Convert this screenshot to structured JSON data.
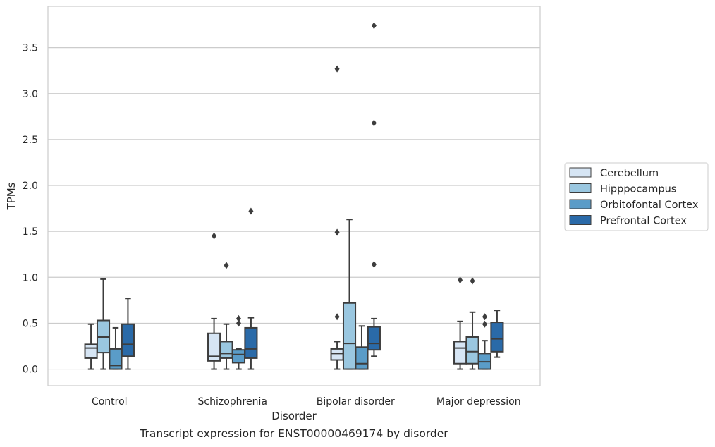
{
  "chart_data": {
    "type": "box",
    "xlabel": "Disorder",
    "ylabel": "TPMs",
    "caption": "Transcript expression for ENST00000469174 by disorder",
    "ylim": [
      -0.18,
      3.95
    ],
    "yticks": [
      0.0,
      0.5,
      1.0,
      1.5,
      2.0,
      2.5,
      3.0,
      3.5
    ],
    "ytick_labels": [
      "0.0",
      "0.5",
      "1.0",
      "1.5",
      "2.0",
      "2.5",
      "3.0",
      "3.5"
    ],
    "grid": "horizontal",
    "legend_position": "right",
    "categories": [
      "Control",
      "Schizophrenia",
      "Bipolar disorder",
      "Major depression"
    ],
    "series": [
      {
        "name": "Cerebellum",
        "color": "#d6e5f4",
        "boxes": [
          {
            "whislo": 0.0,
            "q1": 0.12,
            "med": 0.23,
            "q3": 0.27,
            "whishi": 0.49,
            "fliers": []
          },
          {
            "whislo": 0.0,
            "q1": 0.09,
            "med": 0.14,
            "q3": 0.39,
            "whishi": 0.55,
            "fliers": [
              1.45
            ]
          },
          {
            "whislo": 0.0,
            "q1": 0.1,
            "med": 0.17,
            "q3": 0.22,
            "whishi": 0.3,
            "fliers": [
              0.57,
              1.49,
              3.27
            ]
          },
          {
            "whislo": 0.0,
            "q1": 0.06,
            "med": 0.23,
            "q3": 0.3,
            "whishi": 0.52,
            "fliers": [
              0.97
            ]
          }
        ]
      },
      {
        "name": "Hipppocampus",
        "color": "#9ac7e0",
        "boxes": [
          {
            "whislo": 0.0,
            "q1": 0.18,
            "med": 0.35,
            "q3": 0.53,
            "whishi": 0.98,
            "fliers": []
          },
          {
            "whislo": 0.0,
            "q1": 0.12,
            "med": 0.17,
            "q3": 0.3,
            "whishi": 0.49,
            "fliers": [
              1.13
            ]
          },
          {
            "whislo": 0.0,
            "q1": 0.0,
            "med": 0.28,
            "q3": 0.72,
            "whishi": 1.63,
            "fliers": []
          },
          {
            "whislo": 0.0,
            "q1": 0.06,
            "med": 0.19,
            "q3": 0.35,
            "whishi": 0.62,
            "fliers": [
              0.96
            ]
          }
        ]
      },
      {
        "name": "Orbitofontal Cortex",
        "color": "#5a9cc8",
        "boxes": [
          {
            "whislo": 0.0,
            "q1": 0.0,
            "med": 0.04,
            "q3": 0.22,
            "whishi": 0.45,
            "fliers": []
          },
          {
            "whislo": 0.0,
            "q1": 0.07,
            "med": 0.16,
            "q3": 0.21,
            "whishi": 0.22,
            "fliers": [
              0.5,
              0.55
            ]
          },
          {
            "whislo": 0.0,
            "q1": 0.0,
            "med": 0.06,
            "q3": 0.24,
            "whishi": 0.47,
            "fliers": []
          },
          {
            "whislo": 0.0,
            "q1": 0.0,
            "med": 0.08,
            "q3": 0.17,
            "whishi": 0.31,
            "fliers": [
              0.49,
              0.57
            ]
          }
        ]
      },
      {
        "name": "Prefrontal Cortex",
        "color": "#2a6aa8",
        "boxes": [
          {
            "whislo": 0.0,
            "q1": 0.14,
            "med": 0.27,
            "q3": 0.49,
            "whishi": 0.77,
            "fliers": []
          },
          {
            "whislo": 0.0,
            "q1": 0.12,
            "med": 0.22,
            "q3": 0.45,
            "whishi": 0.56,
            "fliers": [
              1.72
            ]
          },
          {
            "whislo": 0.14,
            "q1": 0.21,
            "med": 0.28,
            "q3": 0.46,
            "whishi": 0.55,
            "fliers": [
              1.14,
              2.68,
              3.74
            ]
          },
          {
            "whislo": 0.13,
            "q1": 0.19,
            "med": 0.33,
            "q3": 0.51,
            "whishi": 0.64,
            "fliers": []
          }
        ]
      }
    ]
  }
}
